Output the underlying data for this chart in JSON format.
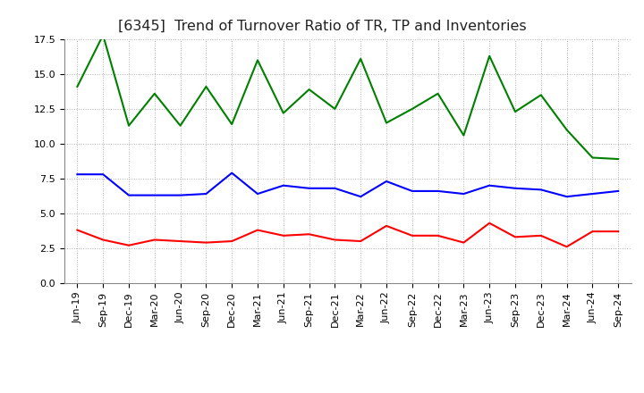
{
  "title": "[6345]  Trend of Turnover Ratio of TR, TP and Inventories",
  "x_labels": [
    "Jun-19",
    "Sep-19",
    "Dec-19",
    "Mar-20",
    "Jun-20",
    "Sep-20",
    "Dec-20",
    "Mar-21",
    "Jun-21",
    "Sep-21",
    "Dec-21",
    "Mar-22",
    "Jun-22",
    "Sep-22",
    "Dec-22",
    "Mar-23",
    "Jun-23",
    "Sep-23",
    "Dec-23",
    "Mar-24",
    "Jun-24",
    "Sep-24"
  ],
  "trade_receivables": [
    3.8,
    3.1,
    2.7,
    3.1,
    3.0,
    2.9,
    3.0,
    3.8,
    3.4,
    3.5,
    3.1,
    3.0,
    4.1,
    3.4,
    3.4,
    2.9,
    4.3,
    3.3,
    3.4,
    2.6,
    3.7,
    3.7
  ],
  "trade_payables": [
    7.8,
    7.8,
    6.3,
    6.3,
    6.3,
    6.4,
    7.9,
    6.4,
    7.0,
    6.8,
    6.8,
    6.2,
    7.3,
    6.6,
    6.6,
    6.4,
    7.0,
    6.8,
    6.7,
    6.2,
    6.4,
    6.6
  ],
  "inventories": [
    14.1,
    17.8,
    11.3,
    13.6,
    11.3,
    14.1,
    11.4,
    16.0,
    12.2,
    13.9,
    12.5,
    16.1,
    11.5,
    12.5,
    13.6,
    10.6,
    16.3,
    12.3,
    13.5,
    11.0,
    9.0,
    8.9
  ],
  "ylim": [
    0.0,
    17.5
  ],
  "yticks": [
    0.0,
    2.5,
    5.0,
    7.5,
    10.0,
    12.5,
    15.0,
    17.5
  ],
  "tr_color": "#ff0000",
  "tp_color": "#0000ff",
  "inv_color": "#008000",
  "bg_color": "#ffffff",
  "grid_color": "#b0b0b0",
  "title_fontsize": 11.5,
  "tick_fontsize": 8,
  "legend_fontsize": 9
}
